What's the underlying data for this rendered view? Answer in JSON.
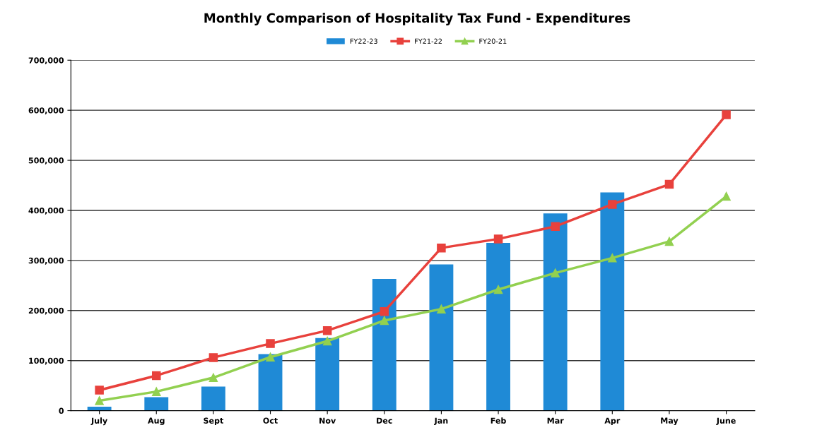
{
  "chart_data": {
    "type": "bar",
    "title": "Monthly Comparison of Hospitality Tax Fund - Expenditures",
    "categories": [
      "July",
      "Aug",
      "Sept",
      "Oct",
      "Nov",
      "Dec",
      "Jan",
      "Feb",
      "Mar",
      "Apr",
      "May",
      "June"
    ],
    "series": [
      {
        "name": "FY22-23",
        "color": "#1f8ad6",
        "values": [
          8000,
          27000,
          48000,
          113000,
          145000,
          263000,
          292000,
          335000,
          394000,
          436000,
          null,
          null
        ]
      },
      {
        "name": "FY21-22",
        "type": "line",
        "color": "#e8413c",
        "marker": "square",
        "values": [
          41000,
          70000,
          106000,
          134000,
          160000,
          198000,
          325000,
          343000,
          368000,
          412000,
          452000,
          591000
        ]
      },
      {
        "name": "FY20-21",
        "type": "line",
        "color": "#92d050",
        "marker": "triangle",
        "values": [
          20000,
          38000,
          66000,
          107000,
          139000,
          180000,
          203000,
          242000,
          275000,
          305000,
          338000,
          428000
        ]
      }
    ],
    "ylim": [
      0,
      700000
    ],
    "yticks": [
      0,
      {
        "value": 100000,
        "label": "100,000"
      },
      {
        "value": 200000,
        "label": "200,000"
      },
      {
        "value": 300000,
        "label": "300,000"
      },
      {
        "value": 400000,
        "label": "400,000"
      },
      {
        "value": 500000,
        "label": "500,000"
      },
      {
        "value": 600000,
        "label": "600,000"
      },
      {
        "value": 700000,
        "label": "700,000"
      }
    ],
    "grid": "y",
    "legend": "top"
  }
}
